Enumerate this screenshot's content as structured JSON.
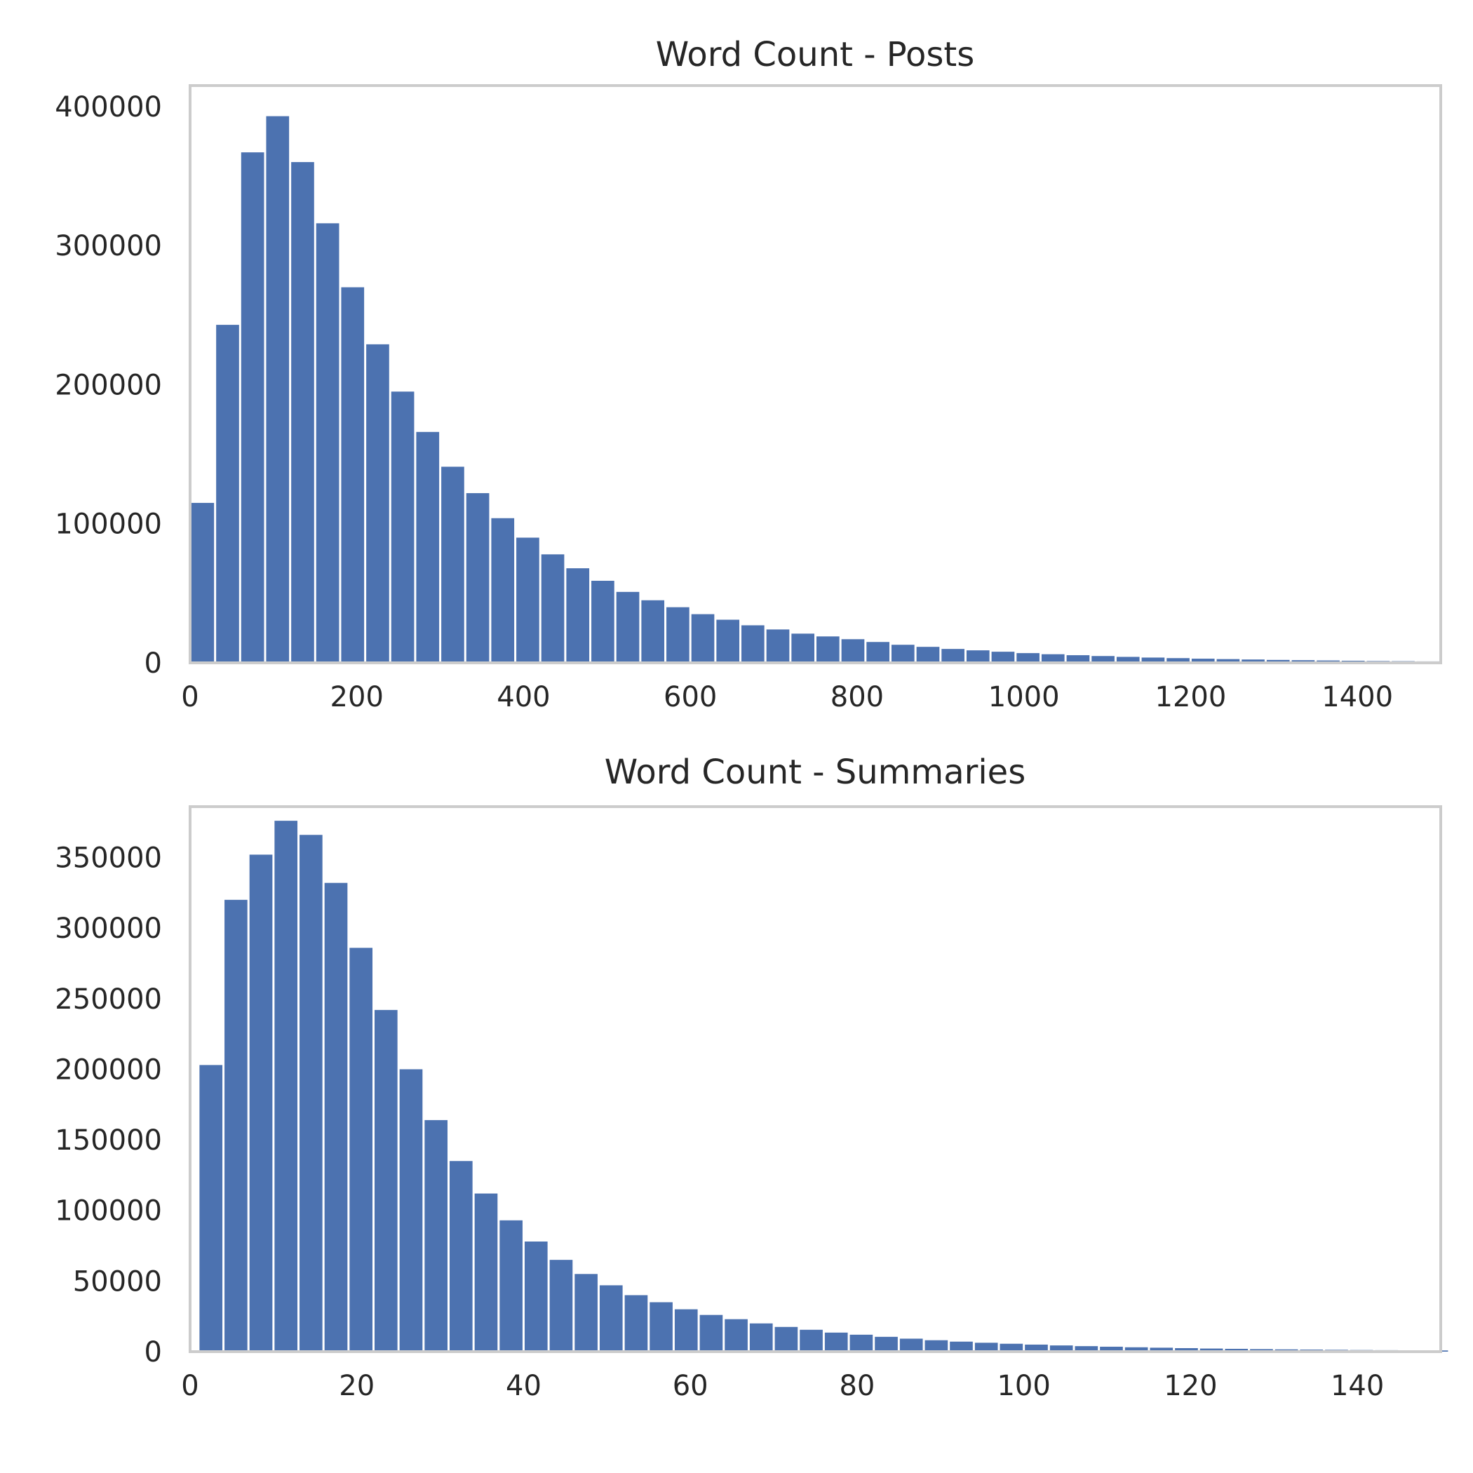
{
  "colors": {
    "bar": "#4c72b0",
    "frame": "#cccccc",
    "text": "#262626",
    "background": "#ffffff"
  },
  "chart_data": [
    {
      "type": "bar",
      "title": "Word Count - Posts",
      "xlabel": "",
      "ylabel": "",
      "xlim": [
        0,
        1500
      ],
      "ylim": [
        0,
        415000
      ],
      "bin_width": 30,
      "x": [
        0,
        30,
        60,
        90,
        120,
        150,
        180,
        210,
        240,
        270,
        300,
        330,
        360,
        390,
        420,
        450,
        480,
        510,
        540,
        570,
        600,
        630,
        660,
        690,
        720,
        750,
        780,
        810,
        840,
        870,
        900,
        930,
        960,
        990,
        1020,
        1050,
        1080,
        1110,
        1140,
        1170,
        1200,
        1230,
        1260,
        1290,
        1320,
        1350,
        1380,
        1410,
        1440,
        1470
      ],
      "values": [
        115000,
        243000,
        367000,
        393000,
        360000,
        316000,
        270000,
        229000,
        195000,
        166000,
        141000,
        122000,
        104000,
        90000,
        78000,
        68000,
        59000,
        51000,
        45000,
        40000,
        35000,
        31000,
        27000,
        24000,
        21000,
        19000,
        17000,
        15000,
        13000,
        11500,
        10000,
        9000,
        8000,
        7000,
        6200,
        5500,
        4900,
        4300,
        3800,
        3400,
        3000,
        2700,
        2400,
        2100,
        1900,
        1700,
        1500,
        1300,
        1200,
        1050
      ],
      "xticks": [
        "0",
        "200",
        "400",
        "600",
        "800",
        "1000",
        "1200",
        "1400"
      ],
      "xtick_values": [
        0,
        200,
        400,
        600,
        800,
        1000,
        1200,
        1400
      ],
      "yticks": [
        "0",
        "100000",
        "200000",
        "300000",
        "400000"
      ],
      "ytick_values": [
        0,
        100000,
        200000,
        300000,
        400000
      ],
      "grid": false
    },
    {
      "type": "bar",
      "title": "Word Count - Summaries",
      "xlabel": "",
      "ylabel": "",
      "xlim": [
        0,
        150
      ],
      "ylim": [
        0,
        386000
      ],
      "bin_width": 3,
      "x": [
        1,
        4,
        7,
        10,
        13,
        16,
        19,
        22,
        25,
        28,
        31,
        34,
        37,
        40,
        43,
        46,
        49,
        52,
        55,
        58,
        61,
        64,
        67,
        70,
        73,
        76,
        79,
        82,
        85,
        88,
        91,
        94,
        97,
        100,
        103,
        106,
        109,
        112,
        115,
        118,
        121,
        124,
        127,
        130,
        133,
        136,
        139,
        142,
        145,
        148
      ],
      "values": [
        203000,
        320000,
        352000,
        376000,
        366000,
        332000,
        286000,
        242000,
        200000,
        164000,
        135000,
        112000,
        93000,
        78000,
        65000,
        55000,
        47000,
        40000,
        35000,
        30000,
        26000,
        23000,
        20000,
        17500,
        15500,
        13500,
        12000,
        10500,
        9200,
        8100,
        7100,
        6300,
        5600,
        5000,
        4400,
        3900,
        3500,
        3100,
        2800,
        2500,
        2200,
        2000,
        1800,
        1600,
        1450,
        1300,
        1150,
        1050,
        950,
        850
      ],
      "xticks": [
        "0",
        "20",
        "40",
        "60",
        "80",
        "100",
        "120",
        "140"
      ],
      "xtick_values": [
        0,
        20,
        40,
        60,
        80,
        100,
        120,
        140
      ],
      "yticks": [
        "0",
        "50000",
        "100000",
        "150000",
        "200000",
        "250000",
        "300000",
        "350000"
      ],
      "ytick_values": [
        0,
        50000,
        100000,
        150000,
        200000,
        250000,
        300000,
        350000
      ],
      "grid": false
    }
  ]
}
